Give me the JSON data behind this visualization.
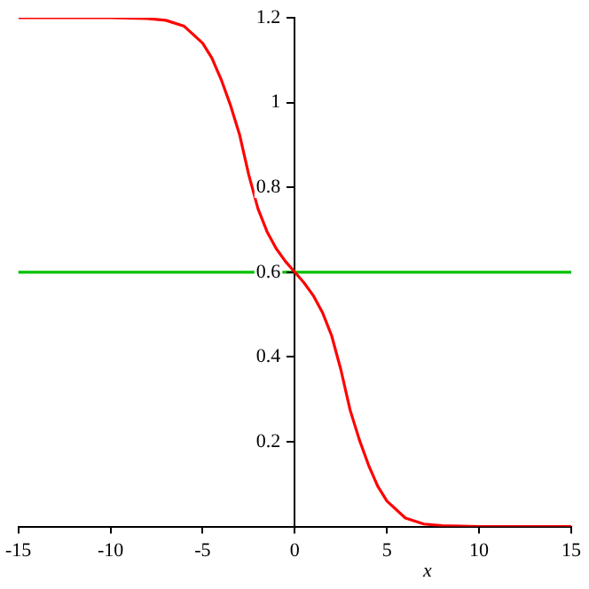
{
  "chart_data": {
    "type": "line",
    "xlabel": "x",
    "x": [
      -15,
      -10,
      -8,
      -7,
      -6,
      -5,
      -4.5,
      -4,
      -3.5,
      -3,
      -2.5,
      -2,
      -1.5,
      -1,
      -0.5,
      0,
      0.5,
      1,
      1.5,
      2,
      2.5,
      3,
      3.5,
      4,
      4.5,
      5,
      6,
      7,
      8,
      10,
      15
    ],
    "series": [
      {
        "color": "#ff0000",
        "values": [
          1.2,
          1.2,
          1.198,
          1.194,
          1.18,
          1.14,
          1.105,
          1.055,
          0.995,
          0.925,
          0.83,
          0.75,
          0.695,
          0.655,
          0.625,
          0.6,
          0.575,
          0.545,
          0.505,
          0.45,
          0.37,
          0.275,
          0.205,
          0.145,
          0.095,
          0.06,
          0.02,
          0.006,
          0.002,
          0,
          0
        ]
      }
    ],
    "ref_lines": [
      {
        "axis": "y",
        "value": 0.6,
        "color": "#00c000"
      }
    ],
    "xlim": [
      -15,
      15
    ],
    "xticks": [
      -15,
      -10,
      -5,
      0,
      5,
      10,
      15
    ],
    "ylim": [
      0,
      1.2
    ],
    "yticks": [
      0.2,
      0.4,
      0.6,
      0.8,
      1,
      1.2
    ],
    "grid": false,
    "legend": false,
    "marker": "none",
    "line_style": "solid"
  }
}
